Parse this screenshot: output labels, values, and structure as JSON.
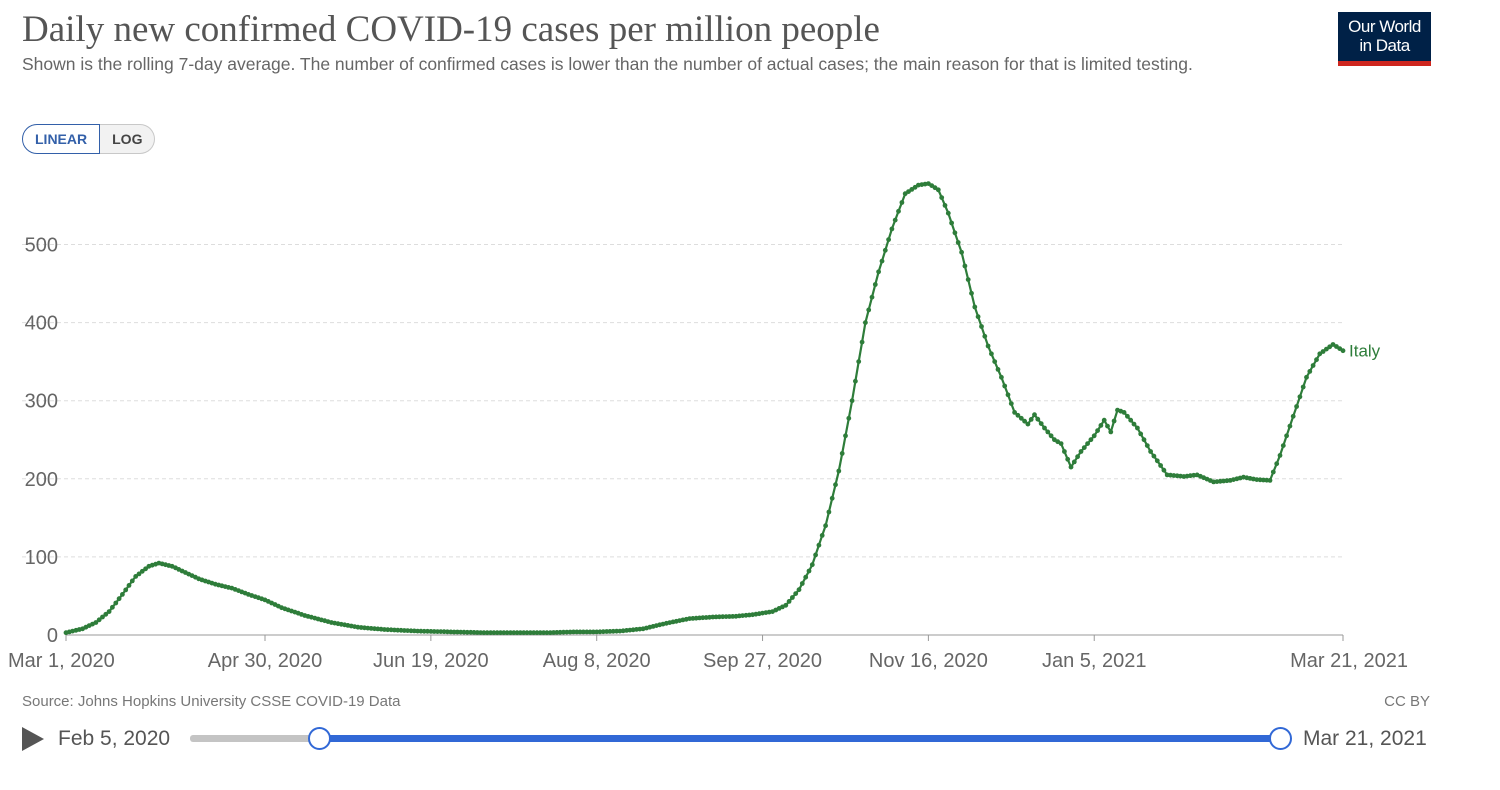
{
  "header": {
    "title": "Daily new confirmed COVID-19 cases per million people",
    "subtitle": "Shown is the rolling 7-day average. The number of confirmed cases is lower than the number of actual cases; the main reason for that is limited testing.",
    "logo_line1": "Our World",
    "logo_line2": "in Data"
  },
  "scale_toggle": {
    "linear_label": "LINEAR",
    "log_label": "LOG",
    "selected": "LINEAR"
  },
  "footer": {
    "source": "Source: Johns Hopkins University CSSE COVID-19 Data",
    "license": "CC BY"
  },
  "timeline": {
    "start_label": "Feb 5, 2020",
    "end_label": "Mar 21, 2021",
    "range_start": "2020-02-05",
    "range_end": "2021-03-21",
    "selected_start": "2020-03-01",
    "selected_end": "2021-03-21"
  },
  "colors": {
    "series": "#2e7d3a",
    "grid": "#dddddd",
    "accent": "#3168d6",
    "logo_bg": "#002147",
    "logo_bar": "#ce261e"
  },
  "chart_data": {
    "type": "line",
    "title": "Daily new confirmed COVID-19 cases per million people",
    "ylim": [
      0,
      580
    ],
    "yticks": [
      0,
      100,
      200,
      300,
      400,
      500
    ],
    "xticks": [
      {
        "date": "2020-03-01",
        "label": "Mar 1, 2020"
      },
      {
        "date": "2020-04-30",
        "label": "Apr 30, 2020"
      },
      {
        "date": "2020-06-19",
        "label": "Jun 19, 2020"
      },
      {
        "date": "2020-08-08",
        "label": "Aug 8, 2020"
      },
      {
        "date": "2020-09-27",
        "label": "Sep 27, 2020"
      },
      {
        "date": "2020-11-16",
        "label": "Nov 16, 2020"
      },
      {
        "date": "2021-01-05",
        "label": "Jan 5, 2021"
      },
      {
        "date": "2021-03-21",
        "label": "Mar 21, 2021"
      }
    ],
    "xlim": [
      "2020-03-01",
      "2021-03-21"
    ],
    "grid": "horizontal dashed",
    "series": [
      {
        "name": "Italy",
        "points": [
          [
            "2020-03-01",
            3
          ],
          [
            "2020-03-06",
            8
          ],
          [
            "2020-03-10",
            16
          ],
          [
            "2020-03-14",
            30
          ],
          [
            "2020-03-18",
            52
          ],
          [
            "2020-03-22",
            75
          ],
          [
            "2020-03-26",
            88
          ],
          [
            "2020-03-29",
            92
          ],
          [
            "2020-04-02",
            88
          ],
          [
            "2020-04-06",
            80
          ],
          [
            "2020-04-10",
            72
          ],
          [
            "2020-04-15",
            65
          ],
          [
            "2020-04-20",
            60
          ],
          [
            "2020-04-25",
            52
          ],
          [
            "2020-04-30",
            45
          ],
          [
            "2020-05-05",
            35
          ],
          [
            "2020-05-12",
            25
          ],
          [
            "2020-05-20",
            16
          ],
          [
            "2020-05-28",
            10
          ],
          [
            "2020-06-05",
            7
          ],
          [
            "2020-06-15",
            5
          ],
          [
            "2020-06-25",
            4
          ],
          [
            "2020-07-05",
            3
          ],
          [
            "2020-07-15",
            3
          ],
          [
            "2020-07-25",
            3
          ],
          [
            "2020-08-01",
            4
          ],
          [
            "2020-08-08",
            4
          ],
          [
            "2020-08-15",
            5
          ],
          [
            "2020-08-22",
            8
          ],
          [
            "2020-08-29",
            15
          ],
          [
            "2020-09-05",
            21
          ],
          [
            "2020-09-12",
            23
          ],
          [
            "2020-09-19",
            24
          ],
          [
            "2020-09-24",
            26
          ],
          [
            "2020-09-30",
            30
          ],
          [
            "2020-10-04",
            38
          ],
          [
            "2020-10-08",
            58
          ],
          [
            "2020-10-12",
            90
          ],
          [
            "2020-10-16",
            140
          ],
          [
            "2020-10-20",
            210
          ],
          [
            "2020-10-24",
            300
          ],
          [
            "2020-10-28",
            400
          ],
          [
            "2020-11-01",
            465
          ],
          [
            "2020-11-05",
            520
          ],
          [
            "2020-11-09",
            565
          ],
          [
            "2020-11-13",
            576
          ],
          [
            "2020-11-16",
            578
          ],
          [
            "2020-11-19",
            570
          ],
          [
            "2020-11-22",
            540
          ],
          [
            "2020-11-26",
            490
          ],
          [
            "2020-11-30",
            420
          ],
          [
            "2020-12-04",
            370
          ],
          [
            "2020-12-08",
            330
          ],
          [
            "2020-12-12",
            285
          ],
          [
            "2020-12-16",
            270
          ],
          [
            "2020-12-18",
            282
          ],
          [
            "2020-12-21",
            265
          ],
          [
            "2020-12-24",
            250
          ],
          [
            "2020-12-26",
            245
          ],
          [
            "2020-12-29",
            215
          ],
          [
            "2021-01-01",
            235
          ],
          [
            "2021-01-05",
            255
          ],
          [
            "2021-01-08",
            275
          ],
          [
            "2021-01-10",
            260
          ],
          [
            "2021-01-12",
            288
          ],
          [
            "2021-01-14",
            285
          ],
          [
            "2021-01-18",
            265
          ],
          [
            "2021-01-22",
            235
          ],
          [
            "2021-01-27",
            205
          ],
          [
            "2021-02-01",
            203
          ],
          [
            "2021-02-05",
            205
          ],
          [
            "2021-02-10",
            196
          ],
          [
            "2021-02-15",
            198
          ],
          [
            "2021-02-19",
            202
          ],
          [
            "2021-02-23",
            199
          ],
          [
            "2021-02-27",
            198
          ],
          [
            "2021-03-02",
            230
          ],
          [
            "2021-03-06",
            280
          ],
          [
            "2021-03-10",
            330
          ],
          [
            "2021-03-14",
            360
          ],
          [
            "2021-03-18",
            372
          ],
          [
            "2021-03-21",
            364
          ]
        ]
      }
    ]
  }
}
